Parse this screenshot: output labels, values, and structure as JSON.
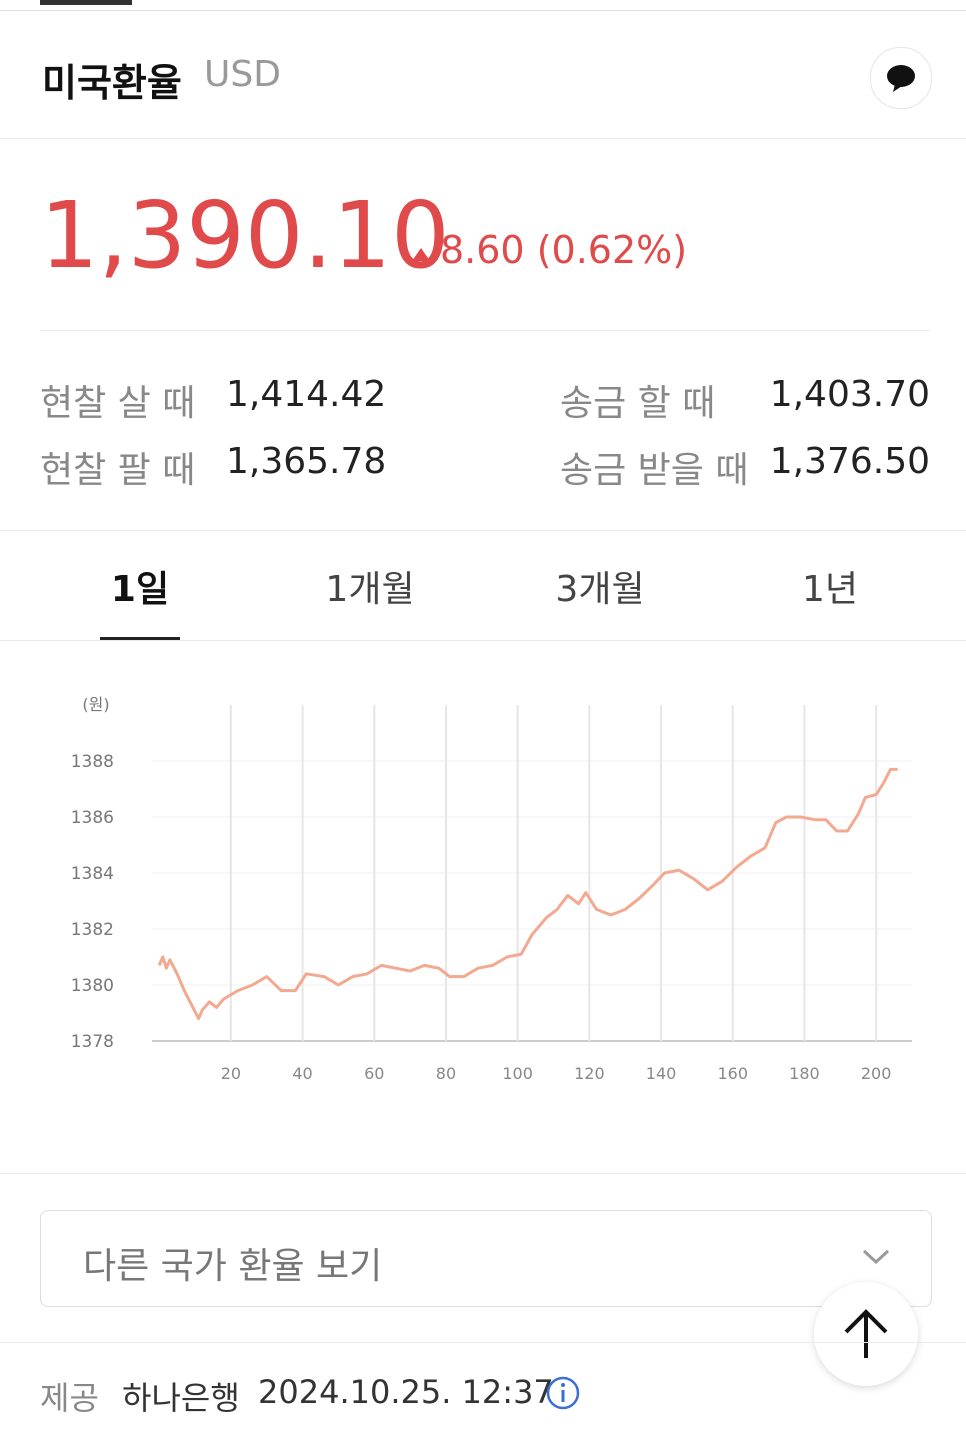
{
  "header": {
    "title": "미국환율",
    "code": "USD"
  },
  "price": {
    "value": "1,390.10",
    "change": "8.60 (0.62%)"
  },
  "rates": [
    {
      "label": "현찰 살 때",
      "value": "1,414.42"
    },
    {
      "label": "송금 할 때",
      "value": "1,403.70"
    },
    {
      "label": "현찰 팔 때",
      "value": "1,365.78"
    },
    {
      "label": "송금 받을 때",
      "value": "1,376.50"
    }
  ],
  "tabs": [
    "1일",
    "1개월",
    "3개월",
    "1년"
  ],
  "chart_data": {
    "type": "line",
    "y_label": "(원)",
    "x": [
      0,
      1,
      2,
      3,
      5,
      7,
      9,
      11,
      12,
      14,
      16,
      18,
      22,
      26,
      30,
      34,
      38,
      41,
      46,
      50,
      54,
      58,
      62,
      66,
      70,
      74,
      78,
      81,
      85,
      89,
      93,
      97,
      101,
      104,
      108,
      111,
      114,
      117,
      119,
      122,
      126,
      130,
      134,
      138,
      141,
      145,
      149,
      153,
      157,
      161,
      165,
      169,
      172,
      175,
      179,
      183,
      186,
      189,
      192,
      195,
      197,
      200,
      202,
      204,
      206
    ],
    "series": [
      {
        "color": "#f3a98f",
        "values": [
          1380.7,
          1381.0,
          1380.6,
          1380.9,
          1380.4,
          1379.8,
          1379.3,
          1378.8,
          1379.1,
          1379.4,
          1379.2,
          1379.5,
          1379.8,
          1380.0,
          1380.3,
          1379.8,
          1379.8,
          1380.4,
          1380.3,
          1380.0,
          1380.3,
          1380.4,
          1380.7,
          1380.6,
          1380.5,
          1380.7,
          1380.6,
          1380.3,
          1380.3,
          1380.6,
          1380.7,
          1381.0,
          1381.1,
          1381.8,
          1382.4,
          1382.7,
          1383.2,
          1382.9,
          1383.3,
          1382.7,
          1382.5,
          1382.7,
          1383.1,
          1383.6,
          1384.0,
          1384.1,
          1383.8,
          1383.4,
          1383.7,
          1384.2,
          1384.6,
          1384.9,
          1385.8,
          1386.0,
          1386.0,
          1385.9,
          1385.9,
          1385.5,
          1385.5,
          1386.1,
          1386.7,
          1386.8,
          1387.2,
          1387.7,
          1387.7
        ]
      }
    ],
    "xlim": [
      -2,
      210
    ],
    "xticks": [
      20,
      40,
      60,
      80,
      100,
      120,
      140,
      160,
      180,
      200
    ],
    "ylim": [
      1378,
      1390
    ],
    "yticks": [
      1378,
      1380,
      1382,
      1384,
      1386,
      1388
    ],
    "grid": true
  },
  "select": "다른 국가 환율 보기",
  "footer": {
    "label": "제공",
    "provider": "하나은행",
    "timestamp": "2024.10.25. 12:37"
  }
}
